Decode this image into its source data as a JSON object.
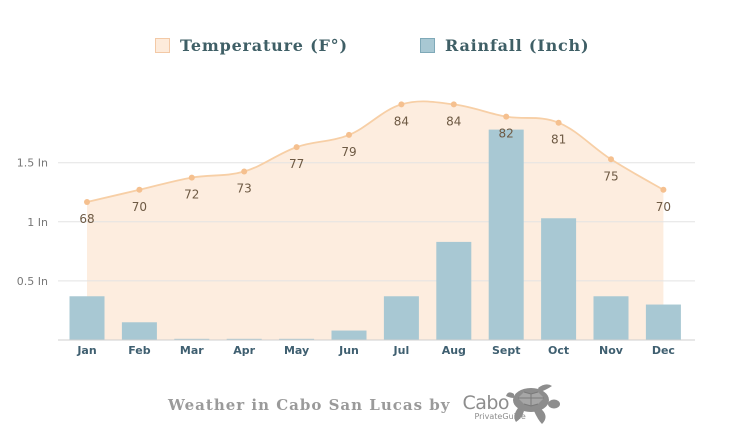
{
  "legend": {
    "temperature": {
      "label": "Temperature (F°)",
      "color": "#fdebdb",
      "border": "#f3c9a6"
    },
    "rainfall": {
      "label": "Rainfall (Inch)",
      "color": "#a8c8d3",
      "border": "#7fa9b8"
    }
  },
  "chart_data": {
    "type": "bar",
    "categories": [
      "Jan",
      "Feb",
      "Mar",
      "Apr",
      "May",
      "Jun",
      "Jul",
      "Aug",
      "Sept",
      "Oct",
      "Nov",
      "Dec"
    ],
    "series": [
      {
        "name": "Rainfall (Inch)",
        "type": "bar",
        "values": [
          0.37,
          0.15,
          0.01,
          0.01,
          0.01,
          0.08,
          0.37,
          0.83,
          1.78,
          1.03,
          0.37,
          0.3
        ],
        "color": "#a8c8d3"
      },
      {
        "name": "Temperature (F°)",
        "type": "area",
        "values": [
          68,
          70,
          72,
          73,
          77,
          79,
          84,
          84,
          82,
          81,
          75,
          70
        ],
        "labels": [
          "68",
          "70",
          "72",
          "73",
          "77",
          "79",
          "84",
          "84",
          "82",
          "81",
          "75",
          "70"
        ],
        "line_color": "#f7cfa6",
        "fill_color": "#fdeddf"
      }
    ],
    "y_ticks": [
      {
        "value": 0.5,
        "label": "0.5 In"
      },
      {
        "value": 1,
        "label": "1 In"
      },
      {
        "value": 1.5,
        "label": "1.5 In"
      }
    ],
    "grid": true
  },
  "footer": {
    "text": "Weather in Cabo San Lucas by",
    "logo_word": "Cabo",
    "logo_sub": "PrivateGuide"
  }
}
